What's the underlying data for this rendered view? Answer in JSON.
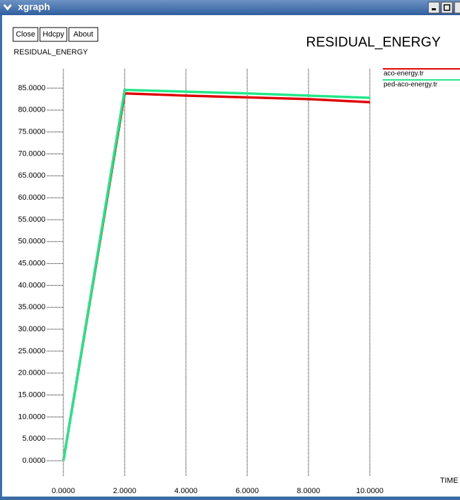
{
  "window": {
    "title": "xgraph"
  },
  "buttons": [
    "Close",
    "Hdcpy",
    "About"
  ],
  "chart_data": {
    "type": "line",
    "title": "RESIDUAL_ENERGY",
    "y_label": "RESIDUAL_ENERGY",
    "x_label": "TIME",
    "x": [
      0,
      2,
      4,
      6,
      8,
      10
    ],
    "series": [
      {
        "name": "aco-energy.tr",
        "color": "#e00000",
        "values": [
          0,
          83.8,
          83.3,
          82.9,
          82.5,
          81.8
        ]
      },
      {
        "name": "ped-aco-energy.tr",
        "color": "#20e888",
        "values": [
          0,
          84.6,
          84.2,
          83.8,
          83.3,
          82.8
        ]
      }
    ],
    "xlim": [
      0,
      10
    ],
    "ylim": [
      0,
      85
    ],
    "xticks": [
      {
        "value": 0,
        "label": "0.0000"
      },
      {
        "value": 2,
        "label": "2.0000"
      },
      {
        "value": 4,
        "label": "4.0000"
      },
      {
        "value": 6,
        "label": "6.0000"
      },
      {
        "value": 8,
        "label": "8.0000"
      },
      {
        "value": 10,
        "label": "10.0000"
      }
    ],
    "yticks": [
      {
        "value": 0,
        "label": "0.0000"
      },
      {
        "value": 5,
        "label": "5.0000"
      },
      {
        "value": 10,
        "label": "10.0000"
      },
      {
        "value": 15,
        "label": "15.0000"
      },
      {
        "value": 20,
        "label": "20.0000"
      },
      {
        "value": 25,
        "label": "25.0000"
      },
      {
        "value": 30,
        "label": "30.0000"
      },
      {
        "value": 35,
        "label": "35.0000"
      },
      {
        "value": 40,
        "label": "40.0000"
      },
      {
        "value": 45,
        "label": "45.0000"
      },
      {
        "value": 50,
        "label": "50.0000"
      },
      {
        "value": 55,
        "label": "55.0000"
      },
      {
        "value": 60,
        "label": "60.0000"
      },
      {
        "value": 65,
        "label": "65.0000"
      },
      {
        "value": 70,
        "label": "70.0000"
      },
      {
        "value": 75,
        "label": "75.0000"
      },
      {
        "value": 80,
        "label": "80.0000"
      },
      {
        "value": 85,
        "label": "85.0000"
      }
    ],
    "grid": true
  }
}
